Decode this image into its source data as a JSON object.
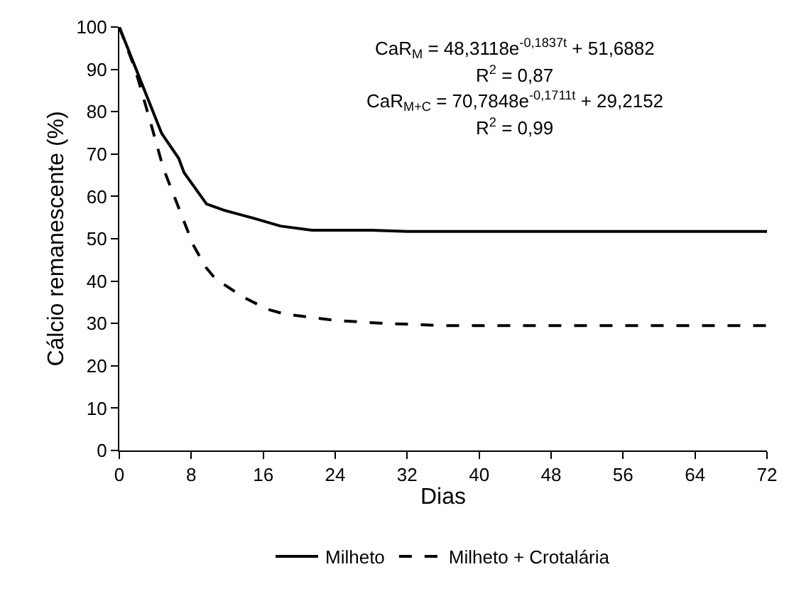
{
  "chart_data": {
    "type": "line",
    "xlabel": "Dias",
    "ylabel": "Cálcio remanescente (%)",
    "xlim": [
      0,
      72
    ],
    "ylim": [
      0,
      100
    ],
    "xticks": [
      0,
      8,
      16,
      24,
      32,
      40,
      48,
      56,
      64,
      72
    ],
    "yticks": [
      0,
      10,
      20,
      30,
      40,
      50,
      60,
      70,
      80,
      90,
      100
    ],
    "legend": "bottom",
    "series": [
      {
        "name": "Milheto",
        "color": "#000000",
        "line_style": "solid",
        "x": [
          0,
          4.7,
          6.6,
          7.2,
          9.7,
          11.7,
          15,
          17.9,
          21.4,
          24,
          28,
          32,
          40,
          48,
          56,
          64,
          72
        ],
        "values": [
          100,
          74.9,
          69,
          65.6,
          58.2,
          56.7,
          54.8,
          53,
          52,
          52,
          52,
          51.7,
          51.7,
          51.7,
          51.7,
          51.7,
          51.7
        ]
      },
      {
        "name": "Milheto + Crotalária",
        "color": "#000000",
        "line_style": "dashed",
        "x": [
          0,
          1.8,
          3.4,
          4.9,
          8.2,
          9.6,
          10.7,
          13.8,
          16.4,
          18.4,
          24,
          29.6,
          36,
          48,
          56,
          64,
          72
        ],
        "values": [
          100,
          89.8,
          78,
          66.6,
          48.6,
          43.3,
          40.5,
          36.2,
          33.4,
          32.2,
          30.7,
          30,
          29.5,
          29.5,
          29.5,
          29.5,
          29.5
        ]
      }
    ],
    "annotations": [
      "CaR$_{M}$ = 48,3118e$^{-0,1837t}$ + 51,6882",
      "R$^{2}$ = 0,87",
      "CaR$_{M+C}$ = 70,7848e$^{-0,1711t}$ + 29,2152",
      "R$^{2}$ = 0,99"
    ]
  }
}
